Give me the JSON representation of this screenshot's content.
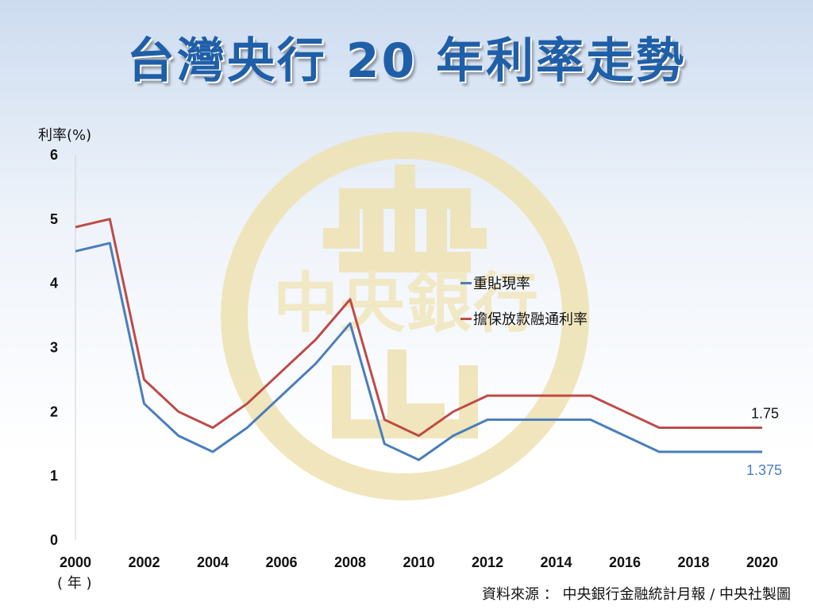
{
  "title": "台灣央行 20 年利率走勢",
  "ylabel": "利率(%)",
  "xunit": "( 年 )",
  "source": "資料來源 ： 中央銀行金融統計月報 / 中央社製圖",
  "watermark_text": "中央銀行",
  "colors": {
    "series1": "#4a7ebb",
    "series2": "#be4b48",
    "title": "#1f5fa8",
    "watermark": "#efe3b5"
  },
  "chart_data": {
    "type": "line",
    "title": "台灣央行 20 年利率走勢",
    "xlabel": "( 年 )",
    "ylabel": "利率(%)",
    "ylim": [
      0,
      6
    ],
    "yticks": [
      0,
      1,
      2,
      3,
      4,
      5,
      6
    ],
    "xlim": [
      2000,
      2020
    ],
    "xticks": [
      2000,
      2002,
      2004,
      2006,
      2008,
      2010,
      2012,
      2014,
      2016,
      2018,
      2020
    ],
    "grid": false,
    "legend": "center",
    "x": [
      2000,
      2001,
      2002,
      2003,
      2004,
      2005,
      2006,
      2007,
      2008,
      2009,
      2010,
      2011,
      2012,
      2013,
      2014,
      2015,
      2016,
      2017,
      2018,
      2019,
      2020
    ],
    "series": [
      {
        "name": "重貼現率",
        "color": "#4a7ebb",
        "values": [
          4.5,
          4.625,
          2.125,
          1.625,
          1.375,
          1.75,
          2.25,
          2.75,
          3.375,
          1.5,
          1.25,
          1.625,
          1.875,
          1.875,
          1.875,
          1.875,
          1.625,
          1.375,
          1.375,
          1.375,
          1.375
        ],
        "end_label": "1.375"
      },
      {
        "name": "擔保放款融通利率",
        "color": "#be4b48",
        "values": [
          4.875,
          5.0,
          2.5,
          2.0,
          1.75,
          2.125,
          2.625,
          3.125,
          3.75,
          1.875,
          1.625,
          2.0,
          2.25,
          2.25,
          2.25,
          2.25,
          2.0,
          1.75,
          1.75,
          1.75,
          1.75
        ],
        "end_label": "1.75"
      }
    ]
  }
}
